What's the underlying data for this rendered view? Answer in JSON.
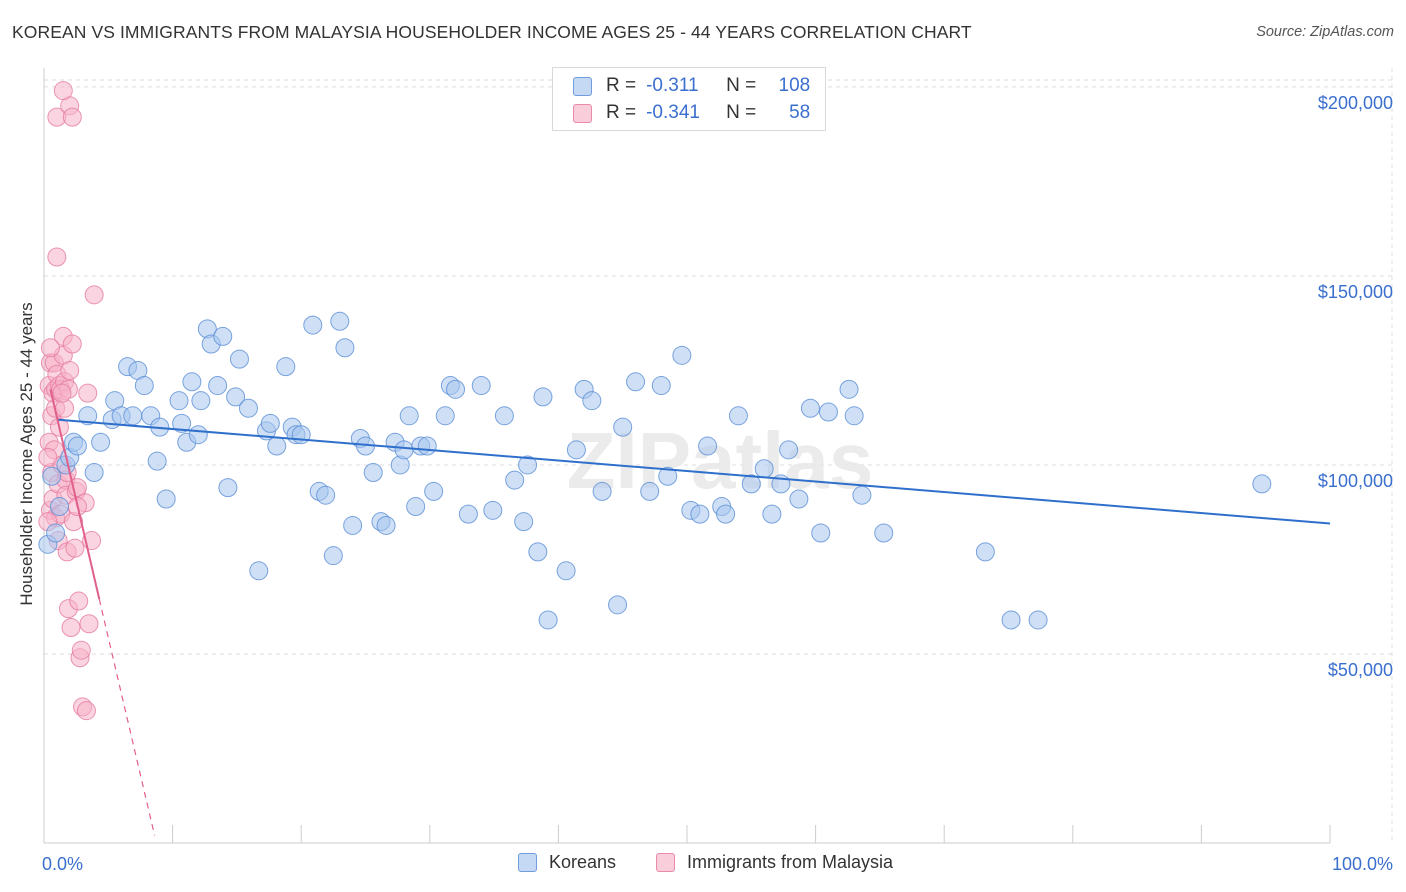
{
  "header": {
    "title": "KOREAN VS IMMIGRANTS FROM MALAYSIA HOUSEHOLDER INCOME AGES 25 - 44 YEARS CORRELATION CHART",
    "source": "Source: ZipAtlas.com"
  },
  "watermark": "ZIPatlas",
  "legend_top": {
    "rows": [
      {
        "r_label": "R =",
        "r_value": "-0.311",
        "n_label": "N =",
        "n_value": "108",
        "color": "#a8c6ef"
      },
      {
        "r_label": "R =",
        "r_value": "-0.341",
        "n_label": "N =",
        "n_value": "58",
        "color": "#f5b3c8"
      }
    ]
  },
  "legend_bottom": {
    "items": [
      {
        "label": "Koreans",
        "color": "#a8c6ef"
      },
      {
        "label": "Immigrants from Malaysia",
        "color": "#f5b3c8"
      }
    ]
  },
  "colors": {
    "koreans_fill": "#a8c6ef",
    "koreans_stroke": "#5b8fd6",
    "koreans_line": "#2f6fcc",
    "malaysia_fill": "#f5b3c8",
    "malaysia_stroke": "#e67aa0",
    "malaysia_line": "#e0608a",
    "axis_text": "#3b6fce",
    "grid": "#dddddd"
  },
  "chart_data": {
    "type": "scatter",
    "title": "KOREAN VS IMMIGRANTS FROM MALAYSIA HOUSEHOLDER INCOME AGES 25 - 44 YEARS CORRELATION CHART",
    "xlabel": "",
    "ylabel": "Householder Income Ages 25 - 44 years",
    "xlim": [
      0,
      100
    ],
    "ylim": [
      0,
      205000
    ],
    "x_tick_labels": [
      "0.0%",
      "100.0%"
    ],
    "y_ticks": [
      50000,
      100000,
      150000,
      200000
    ],
    "y_tick_labels": [
      "$50,000",
      "$100,000",
      "$150,000",
      "$200,000"
    ],
    "grid": true,
    "legend_position": "top-center",
    "series": [
      {
        "name": "Koreans",
        "points": [
          [
            0.3,
            79000
          ],
          [
            0.6,
            97000
          ],
          [
            0.9,
            82000
          ],
          [
            1.2,
            89000
          ],
          [
            1.7,
            100000
          ],
          [
            2.0,
            102000
          ],
          [
            2.3,
            106000
          ],
          [
            2.6,
            105000
          ],
          [
            3.4,
            113000
          ],
          [
            3.9,
            98000
          ],
          [
            4.4,
            106000
          ],
          [
            5.3,
            112000
          ],
          [
            5.5,
            117000
          ],
          [
            6.0,
            113000
          ],
          [
            6.5,
            126000
          ],
          [
            6.9,
            113000
          ],
          [
            7.3,
            125000
          ],
          [
            7.8,
            121000
          ],
          [
            8.3,
            113000
          ],
          [
            8.8,
            101000
          ],
          [
            9.0,
            110000
          ],
          [
            9.5,
            91000
          ],
          [
            10.5,
            117000
          ],
          [
            10.7,
            111000
          ],
          [
            11.1,
            106000
          ],
          [
            11.5,
            122000
          ],
          [
            12.0,
            108000
          ],
          [
            12.2,
            117000
          ],
          [
            12.7,
            136000
          ],
          [
            13.0,
            132000
          ],
          [
            13.5,
            121000
          ],
          [
            13.9,
            134000
          ],
          [
            14.3,
            94000
          ],
          [
            14.9,
            118000
          ],
          [
            15.2,
            128000
          ],
          [
            15.9,
            115000
          ],
          [
            16.7,
            72000
          ],
          [
            17.3,
            109000
          ],
          [
            17.6,
            111000
          ],
          [
            18.1,
            105000
          ],
          [
            18.8,
            126000
          ],
          [
            19.3,
            110000
          ],
          [
            19.6,
            108000
          ],
          [
            20.0,
            108000
          ],
          [
            20.9,
            137000
          ],
          [
            21.4,
            93000
          ],
          [
            21.9,
            92000
          ],
          [
            22.5,
            76000
          ],
          [
            23.0,
            138000
          ],
          [
            23.4,
            131000
          ],
          [
            24.0,
            84000
          ],
          [
            24.6,
            107000
          ],
          [
            25.0,
            105000
          ],
          [
            25.6,
            98000
          ],
          [
            26.2,
            85000
          ],
          [
            26.6,
            84000
          ],
          [
            27.3,
            106000
          ],
          [
            27.7,
            100000
          ],
          [
            28.0,
            104000
          ],
          [
            28.4,
            113000
          ],
          [
            28.9,
            89000
          ],
          [
            29.3,
            105000
          ],
          [
            29.8,
            105000
          ],
          [
            30.3,
            93000
          ],
          [
            31.2,
            113000
          ],
          [
            31.6,
            121000
          ],
          [
            32.0,
            120000
          ],
          [
            33.0,
            87000
          ],
          [
            34.0,
            121000
          ],
          [
            34.9,
            88000
          ],
          [
            35.8,
            113000
          ],
          [
            36.6,
            96000
          ],
          [
            37.3,
            85000
          ],
          [
            37.6,
            100000
          ],
          [
            38.4,
            77000
          ],
          [
            38.8,
            118000
          ],
          [
            39.2,
            59000
          ],
          [
            40.6,
            72000
          ],
          [
            41.4,
            104000
          ],
          [
            42.0,
            120000
          ],
          [
            42.6,
            117000
          ],
          [
            43.4,
            93000
          ],
          [
            44.6,
            63000
          ],
          [
            45.0,
            110000
          ],
          [
            46.0,
            122000
          ],
          [
            47.1,
            93000
          ],
          [
            48.0,
            121000
          ],
          [
            48.5,
            97000
          ],
          [
            49.6,
            129000
          ],
          [
            50.3,
            88000
          ],
          [
            51.0,
            87000
          ],
          [
            51.6,
            105000
          ],
          [
            52.7,
            89000
          ],
          [
            53.0,
            87000
          ],
          [
            54.0,
            113000
          ],
          [
            55.0,
            95000
          ],
          [
            56.0,
            99000
          ],
          [
            56.6,
            87000
          ],
          [
            57.3,
            95000
          ],
          [
            57.9,
            104000
          ],
          [
            58.7,
            91000
          ],
          [
            59.6,
            115000
          ],
          [
            60.4,
            82000
          ],
          [
            61.0,
            114000
          ],
          [
            62.6,
            120000
          ],
          [
            63.0,
            113000
          ],
          [
            63.6,
            92000
          ],
          [
            65.3,
            82000
          ],
          [
            73.2,
            77000
          ],
          [
            75.2,
            59000
          ],
          [
            77.3,
            59000
          ],
          [
            94.7,
            95000
          ]
        ]
      },
      {
        "name": "Immigrants from Malaysia",
        "points": [
          [
            0.4,
            121000
          ],
          [
            0.4,
            106000
          ],
          [
            0.5,
            88000
          ],
          [
            0.5,
            127000
          ],
          [
            0.6,
            113000
          ],
          [
            0.6,
            98000
          ],
          [
            0.7,
            91000
          ],
          [
            0.7,
            119000
          ],
          [
            0.8,
            104000
          ],
          [
            0.8,
            127000
          ],
          [
            0.9,
            86000
          ],
          [
            0.9,
            115000
          ],
          [
            0.9,
            120000
          ],
          [
            1.0,
            192000
          ],
          [
            1.0,
            155000
          ],
          [
            1.0,
            124000
          ],
          [
            1.1,
            95000
          ],
          [
            1.1,
            80000
          ],
          [
            1.2,
            121000
          ],
          [
            1.2,
            110000
          ],
          [
            1.3,
            87000
          ],
          [
            1.3,
            120000
          ],
          [
            1.4,
            100000
          ],
          [
            1.5,
            134000
          ],
          [
            1.5,
            129000
          ],
          [
            1.6,
            122000
          ],
          [
            1.6,
            115000
          ],
          [
            1.7,
            96000
          ],
          [
            1.7,
            92000
          ],
          [
            1.8,
            98000
          ],
          [
            1.8,
            77000
          ],
          [
            1.9,
            62000
          ],
          [
            1.9,
            120000
          ],
          [
            2.0,
            195000
          ],
          [
            2.0,
            125000
          ],
          [
            2.1,
            57000
          ],
          [
            2.2,
            132000
          ],
          [
            2.2,
            192000
          ],
          [
            2.3,
            85000
          ],
          [
            2.4,
            78000
          ],
          [
            2.5,
            93000
          ],
          [
            2.6,
            94000
          ],
          [
            2.7,
            64000
          ],
          [
            2.8,
            49000
          ],
          [
            2.9,
            51000
          ],
          [
            3.0,
            36000
          ],
          [
            3.2,
            90000
          ],
          [
            3.3,
            35000
          ],
          [
            3.4,
            119000
          ],
          [
            3.5,
            58000
          ],
          [
            3.7,
            80000
          ],
          [
            3.9,
            145000
          ],
          [
            1.5,
            199000
          ],
          [
            0.3,
            102000
          ],
          [
            0.3,
            85000
          ],
          [
            0.5,
            131000
          ],
          [
            1.4,
            119000
          ],
          [
            2.6,
            89000
          ]
        ]
      }
    ],
    "trend_lines": [
      {
        "series": "Koreans",
        "x": [
          1.0,
          100.0
        ],
        "y": [
          112000,
          84500
        ]
      },
      {
        "series": "Immigrants from Malaysia",
        "x": [
          0.5,
          4.3
        ],
        "y": [
          120000,
          64500
        ],
        "dashed_extension": {
          "x": [
            4.3,
            8.6
          ],
          "y": [
            64500,
            2000
          ]
        }
      }
    ]
  }
}
